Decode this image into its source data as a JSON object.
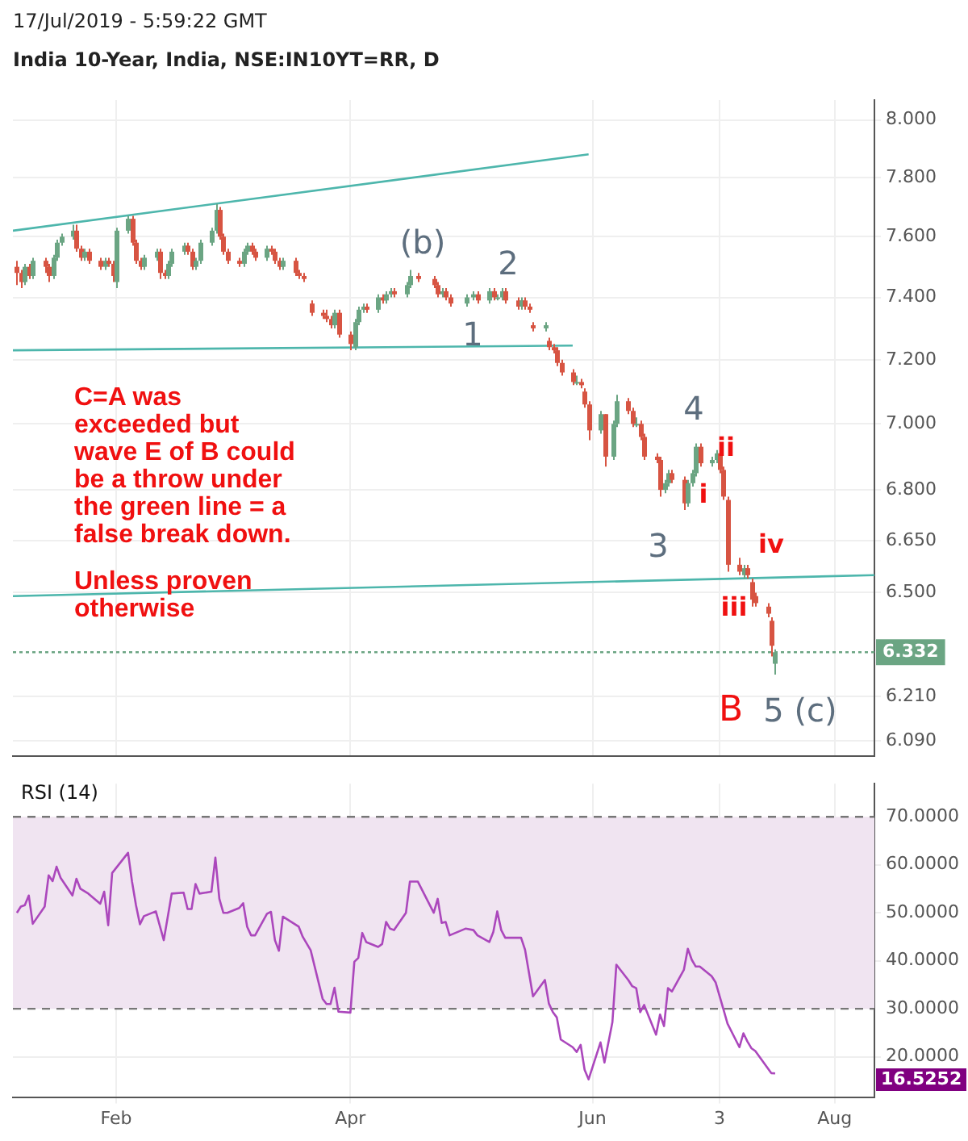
{
  "chart_data": [
    {
      "type": "candlestick",
      "title": "India 10-Year, India, NSE:IN10YT=RR, D",
      "subtitle": "17/Jul/2019 - 5:59:22 GMT",
      "x": [
        "2019-01-07",
        "2019-01-08",
        "2019-01-09",
        "2019-01-10",
        "2019-01-11",
        "2019-01-14",
        "2019-01-15",
        "2019-01-16",
        "2019-01-17",
        "2019-01-18",
        "2019-01-21",
        "2019-01-22",
        "2019-01-23",
        "2019-01-24",
        "2019-01-25",
        "2019-01-28",
        "2019-01-29",
        "2019-01-30",
        "2019-01-31",
        "2019-02-01",
        "2019-02-04",
        "2019-02-05",
        "2019-02-06",
        "2019-02-07",
        "2019-02-08",
        "2019-02-11",
        "2019-02-12",
        "2019-02-13",
        "2019-02-14",
        "2019-02-15",
        "2019-02-18",
        "2019-02-19",
        "2019-02-20",
        "2019-02-21",
        "2019-02-22",
        "2019-02-25",
        "2019-02-26",
        "2019-02-27",
        "2019-02-28",
        "2019-03-01",
        "2019-03-04",
        "2019-03-05",
        "2019-03-06",
        "2019-03-07",
        "2019-03-08",
        "2019-03-11",
        "2019-03-12",
        "2019-03-13",
        "2019-03-14",
        "2019-03-15",
        "2019-03-18",
        "2019-03-19",
        "2019-03-20",
        "2019-03-22",
        "2019-03-25",
        "2019-03-26",
        "2019-03-27",
        "2019-03-28",
        "2019-03-29",
        "2019-04-01",
        "2019-04-02",
        "2019-04-03",
        "2019-04-04",
        "2019-04-05",
        "2019-04-08",
        "2019-04-09",
        "2019-04-10",
        "2019-04-11",
        "2019-04-12",
        "2019-04-15",
        "2019-04-16",
        "2019-04-18",
        "2019-04-22",
        "2019-04-23",
        "2019-04-24",
        "2019-04-25",
        "2019-04-26",
        "2019-04-30",
        "2019-05-02",
        "2019-05-03",
        "2019-05-06",
        "2019-05-07",
        "2019-05-08",
        "2019-05-09",
        "2019-05-10",
        "2019-05-13",
        "2019-05-14",
        "2019-05-15",
        "2019-05-16",
        "2019-05-17",
        "2019-05-20",
        "2019-05-21",
        "2019-05-22",
        "2019-05-23",
        "2019-05-24",
        "2019-05-27",
        "2019-05-28",
        "2019-05-29",
        "2019-05-30",
        "2019-05-31",
        "2019-06-03",
        "2019-06-04",
        "2019-06-06",
        "2019-06-07",
        "2019-06-10",
        "2019-06-11",
        "2019-06-12",
        "2019-06-13",
        "2019-06-14",
        "2019-06-17",
        "2019-06-18",
        "2019-06-19",
        "2019-06-20",
        "2019-06-21",
        "2019-06-24",
        "2019-06-25",
        "2019-06-26",
        "2019-06-27",
        "2019-06-28",
        "2019-07-01",
        "2019-07-02",
        "2019-07-03",
        "2019-07-04",
        "2019-07-05",
        "2019-07-08",
        "2019-07-09",
        "2019-07-10",
        "2019-07-11",
        "2019-07-12",
        "2019-07-15",
        "2019-07-16",
        "2019-07-17"
      ],
      "ohlc": [
        [
          7.5,
          7.52,
          7.44,
          7.48
        ],
        [
          7.48,
          7.49,
          7.43,
          7.45
        ],
        [
          7.45,
          7.51,
          7.44,
          7.5
        ],
        [
          7.5,
          7.51,
          7.46,
          7.47
        ],
        [
          7.47,
          7.53,
          7.46,
          7.52
        ],
        [
          7.52,
          7.53,
          7.48,
          7.5
        ],
        [
          7.5,
          7.51,
          7.45,
          7.47
        ],
        [
          7.47,
          7.54,
          7.46,
          7.53
        ],
        [
          7.53,
          7.59,
          7.52,
          7.58
        ],
        [
          7.58,
          7.61,
          7.57,
          7.6
        ],
        [
          7.6,
          7.64,
          7.59,
          7.62
        ],
        [
          7.62,
          7.64,
          7.55,
          7.56
        ],
        [
          7.56,
          7.57,
          7.52,
          7.53
        ],
        [
          7.53,
          7.56,
          7.52,
          7.55
        ],
        [
          7.55,
          7.56,
          7.51,
          7.52
        ],
        [
          7.52,
          7.53,
          7.49,
          7.5
        ],
        [
          7.5,
          7.53,
          7.49,
          7.52
        ],
        [
          7.52,
          7.53,
          7.5,
          7.51
        ],
        [
          7.51,
          7.52,
          7.45,
          7.47
        ],
        [
          7.45,
          7.63,
          7.43,
          7.62
        ],
        [
          7.62,
          7.67,
          7.61,
          7.66
        ],
        [
          7.66,
          7.67,
          7.57,
          7.58
        ],
        [
          7.58,
          7.59,
          7.51,
          7.52
        ],
        [
          7.52,
          7.53,
          7.49,
          7.5
        ],
        [
          7.5,
          7.54,
          7.49,
          7.53
        ],
        [
          7.53,
          7.56,
          7.52,
          7.55
        ],
        [
          7.55,
          7.56,
          7.46,
          7.48
        ],
        [
          7.48,
          7.49,
          7.46,
          7.47
        ],
        [
          7.47,
          7.52,
          7.46,
          7.51
        ],
        [
          7.51,
          7.56,
          7.5,
          7.55
        ],
        [
          7.55,
          7.58,
          7.54,
          7.57
        ],
        [
          7.57,
          7.58,
          7.54,
          7.55
        ],
        [
          7.55,
          7.56,
          7.49,
          7.5
        ],
        [
          7.5,
          7.53,
          7.49,
          7.52
        ],
        [
          7.52,
          7.59,
          7.51,
          7.58
        ],
        [
          7.58,
          7.63,
          7.57,
          7.62
        ],
        [
          7.62,
          7.71,
          7.61,
          7.69
        ],
        [
          7.69,
          7.7,
          7.59,
          7.6
        ],
        [
          7.6,
          7.61,
          7.54,
          7.55
        ],
        [
          7.55,
          7.56,
          7.51,
          7.52
        ],
        [
          7.52,
          7.53,
          7.5,
          7.51
        ],
        [
          7.51,
          7.56,
          7.5,
          7.55
        ],
        [
          7.55,
          7.58,
          7.54,
          7.57
        ],
        [
          7.57,
          7.58,
          7.54,
          7.55
        ],
        [
          7.55,
          7.56,
          7.52,
          7.53
        ],
        [
          7.53,
          7.57,
          7.52,
          7.56
        ],
        [
          7.56,
          7.57,
          7.54,
          7.55
        ],
        [
          7.55,
          7.56,
          7.51,
          7.52
        ],
        [
          7.52,
          7.53,
          7.49,
          7.5
        ],
        [
          7.5,
          7.53,
          7.49,
          7.52
        ],
        [
          7.52,
          7.53,
          7.47,
          7.48
        ],
        [
          7.48,
          7.49,
          7.46,
          7.47
        ],
        [
          7.47,
          7.48,
          7.45,
          7.46
        ],
        [
          7.38,
          7.39,
          7.34,
          7.35
        ],
        [
          7.35,
          7.36,
          7.33,
          7.34
        ],
        [
          7.34,
          7.36,
          7.32,
          7.33
        ],
        [
          7.33,
          7.34,
          7.3,
          7.31
        ],
        [
          7.31,
          7.36,
          7.3,
          7.35
        ],
        [
          7.35,
          7.36,
          7.27,
          7.28
        ],
        [
          7.28,
          7.29,
          7.23,
          7.25
        ],
        [
          7.24,
          7.33,
          7.23,
          7.32
        ],
        [
          7.32,
          7.37,
          7.31,
          7.36
        ],
        [
          7.36,
          7.38,
          7.35,
          7.37
        ],
        [
          7.37,
          7.38,
          7.35,
          7.36
        ],
        [
          7.36,
          7.41,
          7.35,
          7.4
        ],
        [
          7.4,
          7.41,
          7.38,
          7.39
        ],
        [
          7.39,
          7.42,
          7.38,
          7.41
        ],
        [
          7.41,
          7.43,
          7.4,
          7.42
        ],
        [
          7.42,
          7.43,
          7.4,
          7.41
        ],
        [
          7.41,
          7.45,
          7.4,
          7.44
        ],
        [
          7.44,
          7.49,
          7.43,
          7.47
        ],
        [
          7.47,
          7.48,
          7.45,
          7.46
        ],
        [
          7.46,
          7.47,
          7.43,
          7.44
        ],
        [
          7.44,
          7.45,
          7.4,
          7.41
        ],
        [
          7.41,
          7.43,
          7.4,
          7.42
        ],
        [
          7.42,
          7.43,
          7.39,
          7.4
        ],
        [
          7.4,
          7.41,
          7.37,
          7.38
        ],
        [
          7.38,
          7.41,
          7.37,
          7.4
        ],
        [
          7.4,
          7.42,
          7.39,
          7.41
        ],
        [
          7.41,
          7.42,
          7.38,
          7.39
        ],
        [
          7.39,
          7.43,
          7.38,
          7.42
        ],
        [
          7.42,
          7.43,
          7.39,
          7.4
        ],
        [
          7.4,
          7.41,
          7.39,
          7.4
        ],
        [
          7.4,
          7.43,
          7.39,
          7.42
        ],
        [
          7.42,
          7.43,
          7.38,
          7.39
        ],
        [
          7.39,
          7.4,
          7.36,
          7.37
        ],
        [
          7.37,
          7.4,
          7.36,
          7.39
        ],
        [
          7.39,
          7.4,
          7.36,
          7.37
        ],
        [
          7.37,
          7.38,
          7.35,
          7.36
        ],
        [
          7.31,
          7.32,
          7.29,
          7.3
        ],
        [
          7.3,
          7.32,
          7.29,
          7.31
        ],
        [
          7.26,
          7.27,
          7.23,
          7.24
        ],
        [
          7.24,
          7.25,
          7.22,
          7.23
        ],
        [
          7.23,
          7.24,
          7.18,
          7.19
        ],
        [
          7.19,
          7.2,
          7.15,
          7.16
        ],
        [
          7.16,
          7.17,
          7.12,
          7.13
        ],
        [
          7.13,
          7.15,
          7.12,
          7.13
        ],
        [
          7.13,
          7.14,
          7.11,
          7.12
        ],
        [
          7.1,
          7.11,
          7.05,
          7.06
        ],
        [
          7.06,
          7.07,
          6.95,
          6.98
        ],
        [
          6.98,
          7.04,
          6.97,
          7.03
        ],
        [
          7.03,
          7.03,
          6.87,
          6.9
        ],
        [
          6.9,
          7.01,
          6.89,
          7.0
        ],
        [
          7.0,
          7.09,
          6.99,
          7.07
        ],
        [
          7.07,
          7.08,
          7.03,
          7.04
        ],
        [
          7.04,
          7.05,
          6.99,
          7.0
        ],
        [
          7.0,
          7.02,
          6.99,
          7.0
        ],
        [
          7.0,
          7.01,
          6.95,
          6.96
        ],
        [
          6.96,
          6.97,
          6.89,
          6.9
        ],
        [
          6.9,
          6.91,
          6.88,
          6.89
        ],
        [
          6.89,
          6.9,
          6.78,
          6.8
        ],
        [
          6.8,
          6.83,
          6.79,
          6.82
        ],
        [
          6.82,
          6.86,
          6.81,
          6.85
        ],
        [
          6.85,
          6.86,
          6.82,
          6.83
        ],
        [
          6.83,
          6.84,
          6.74,
          6.76
        ],
        [
          6.76,
          6.83,
          6.75,
          6.82
        ],
        [
          6.82,
          6.86,
          6.81,
          6.85
        ],
        [
          6.85,
          6.94,
          6.84,
          6.93
        ],
        [
          6.93,
          6.94,
          6.87,
          6.88
        ],
        [
          6.88,
          6.9,
          6.87,
          6.89
        ],
        [
          6.89,
          6.92,
          6.88,
          6.91
        ],
        [
          6.91,
          6.92,
          6.85,
          6.86
        ],
        [
          6.86,
          6.87,
          6.77,
          6.78
        ],
        [
          6.77,
          6.78,
          6.56,
          6.58
        ],
        [
          6.58,
          6.6,
          6.55,
          6.56
        ],
        [
          6.55,
          6.58,
          6.54,
          6.57
        ],
        [
          6.57,
          6.58,
          6.54,
          6.55
        ],
        [
          6.53,
          6.54,
          6.46,
          6.48
        ],
        [
          6.49,
          6.5,
          6.46,
          6.47
        ],
        [
          6.46,
          6.47,
          6.43,
          6.44
        ],
        [
          6.42,
          6.43,
          6.32,
          6.35
        ],
        [
          6.3,
          6.34,
          6.27,
          6.332
        ]
      ],
      "colors": [
        "#d75442",
        "#d75442",
        "#6ba583",
        "#d75442",
        "#6ba583",
        "#d75442",
        "#d75442",
        "#6ba583",
        "#6ba583",
        "#6ba583",
        "#6ba583",
        "#d75442",
        "#d75442",
        "#6ba583",
        "#d75442",
        "#d75442",
        "#6ba583",
        "#d75442",
        "#d75442",
        "#6ba583",
        "#6ba583",
        "#d75442",
        "#d75442",
        "#d75442",
        "#6ba583",
        "#6ba583",
        "#d75442",
        "#d75442",
        "#6ba583",
        "#6ba583",
        "#6ba583",
        "#d75442",
        "#d75442",
        "#6ba583",
        "#6ba583",
        "#6ba583",
        "#6ba583",
        "#d75442",
        "#d75442",
        "#d75442",
        "#d75442",
        "#6ba583",
        "#6ba583",
        "#d75442",
        "#d75442",
        "#6ba583",
        "#d75442",
        "#d75442",
        "#d75442",
        "#6ba583",
        "#d75442",
        "#d75442",
        "#d75442",
        "#d75442",
        "#d75442",
        "#d75442",
        "#d75442",
        "#6ba583",
        "#d75442",
        "#d75442",
        "#6ba583",
        "#6ba583",
        "#6ba583",
        "#d75442",
        "#6ba583",
        "#d75442",
        "#6ba583",
        "#6ba583",
        "#d75442",
        "#6ba583",
        "#6ba583",
        "#d75442",
        "#d75442",
        "#d75442",
        "#6ba583",
        "#d75442",
        "#d75442",
        "#6ba583",
        "#6ba583",
        "#d75442",
        "#6ba583",
        "#d75442",
        "#6ba583",
        "#6ba583",
        "#d75442",
        "#d75442",
        "#6ba583",
        "#d75442",
        "#d75442",
        "#d75442",
        "#6ba583",
        "#d75442",
        "#d75442",
        "#d75442",
        "#d75442",
        "#d75442",
        "#6ba583",
        "#d75442",
        "#d75442",
        "#d75442",
        "#6ba583",
        "#d75442",
        "#6ba583",
        "#6ba583",
        "#d75442",
        "#d75442",
        "#6ba583",
        "#d75442",
        "#d75442",
        "#d75442",
        "#d75442",
        "#6ba583",
        "#6ba583",
        "#d75442",
        "#d75442",
        "#6ba583",
        "#6ba583",
        "#6ba583",
        "#d75442",
        "#6ba583",
        "#6ba583",
        "#d75442",
        "#d75442",
        "#d75442",
        "#d75442",
        "#6ba583",
        "#d75442",
        "#d75442",
        "#d75442",
        "#d75442",
        "#d75442",
        "#6ba583"
      ],
      "series": [
        {
          "type": "line",
          "color": "#4db6ac",
          "x": [
            "2019-01-06",
            "2019-05-31"
          ],
          "values": [
            7.62,
            7.88
          ]
        },
        {
          "type": "line",
          "color": "#4db6ac",
          "x": [
            "2019-01-06",
            "2019-05-27"
          ],
          "values": [
            7.23,
            7.245
          ]
        },
        {
          "type": "line",
          "color": "#4db6ac",
          "x": [
            "2019-01-06",
            "2019-08-11"
          ],
          "values": [
            6.49,
            6.55
          ]
        }
      ],
      "log": "y",
      "marker": "none",
      "grid": true,
      "tick_labels": "y",
      "xlim": [
        "2019-01-06",
        "2019-08-11"
      ],
      "xticks": [
        {
          "value": "2019-02-01",
          "label": null
        },
        {
          "value": "2019-04-01",
          "label": null
        },
        {
          "value": "2019-06-01",
          "label": null
        },
        {
          "value": "2019-07-03",
          "label": null
        },
        {
          "value": "2019-08-01",
          "label": null
        }
      ],
      "ylim": [
        6.05,
        8.07
      ],
      "yticks": [
        {
          "value": 8,
          "label": "8.000"
        },
        {
          "value": 7.8,
          "label": "7.800"
        },
        {
          "value": 7.6,
          "label": "7.600"
        },
        {
          "value": 7.4,
          "label": "7.400"
        },
        {
          "value": 7.2,
          "label": "7.200"
        },
        {
          "value": 7,
          "label": "7.000"
        },
        {
          "value": 6.8,
          "label": "6.800"
        },
        {
          "value": 6.65,
          "label": "6.650"
        },
        {
          "value": 6.5,
          "label": "6.500"
        },
        {
          "value": 6.21,
          "label": "6.210"
        },
        {
          "value": 6.09,
          "label": "6.090"
        }
      ],
      "ref_lines": [
        {
          "axis": "y",
          "value": 6.332,
          "label": "6.332",
          "color": "#6ba583",
          "line_style": "dotted"
        }
      ],
      "annotations": [
        "C=A was exceeded but wave E of B could be a throw under the green line = a false break down.",
        "Unless proven otherwise",
        "(b)",
        "2",
        "1",
        "4",
        "3",
        "ii",
        "i",
        "iv",
        "iii",
        "B",
        "5 (c)"
      ]
    },
    {
      "type": "line",
      "title": "RSI (14)",
      "color": "#ab47bc",
      "marker": "none",
      "grid": true,
      "x": [
        "2019-01-07",
        "2019-01-08",
        "2019-01-09",
        "2019-01-10",
        "2019-01-11",
        "2019-01-14",
        "2019-01-15",
        "2019-01-16",
        "2019-01-17",
        "2019-01-18",
        "2019-01-21",
        "2019-01-22",
        "2019-01-23",
        "2019-01-25",
        "2019-01-28",
        "2019-01-29",
        "2019-01-30",
        "2019-01-31",
        "2019-02-04",
        "2019-02-05",
        "2019-02-06",
        "2019-02-07",
        "2019-02-08",
        "2019-02-11",
        "2019-02-13",
        "2019-02-15",
        "2019-02-18",
        "2019-02-19",
        "2019-02-20",
        "2019-02-21",
        "2019-02-22",
        "2019-02-25",
        "2019-02-26",
        "2019-02-27",
        "2019-02-28",
        "2019-03-01",
        "2019-03-04",
        "2019-03-05",
        "2019-03-06",
        "2019-03-07",
        "2019-03-08",
        "2019-03-11",
        "2019-03-12",
        "2019-03-13",
        "2019-03-14",
        "2019-03-15",
        "2019-03-19",
        "2019-03-20",
        "2019-03-22",
        "2019-03-25",
        "2019-03-26",
        "2019-03-27",
        "2019-03-28",
        "2019-03-29",
        "2019-04-01",
        "2019-04-02",
        "2019-04-03",
        "2019-04-04",
        "2019-04-05",
        "2019-04-08",
        "2019-04-09",
        "2019-04-10",
        "2019-04-11",
        "2019-04-12",
        "2019-04-15",
        "2019-04-16",
        "2019-04-18",
        "2019-04-22",
        "2019-04-23",
        "2019-04-24",
        "2019-04-25",
        "2019-04-26",
        "2019-04-30",
        "2019-05-02",
        "2019-05-03",
        "2019-05-06",
        "2019-05-07",
        "2019-05-08",
        "2019-05-09",
        "2019-05-10",
        "2019-05-14",
        "2019-05-15",
        "2019-05-17",
        "2019-05-20",
        "2019-05-21",
        "2019-05-22",
        "2019-05-23",
        "2019-05-24",
        "2019-05-27",
        "2019-05-28",
        "2019-05-29",
        "2019-05-30",
        "2019-05-31",
        "2019-06-03",
        "2019-06-04",
        "2019-06-06",
        "2019-06-07",
        "2019-06-10",
        "2019-06-11",
        "2019-06-12",
        "2019-06-13",
        "2019-06-14",
        "2019-06-17",
        "2019-06-18",
        "2019-06-19",
        "2019-06-20",
        "2019-06-21",
        "2019-06-24",
        "2019-06-25",
        "2019-06-26",
        "2019-06-27",
        "2019-06-28",
        "2019-07-01",
        "2019-07-02",
        "2019-07-04",
        "2019-07-05",
        "2019-07-08",
        "2019-07-09",
        "2019-07-10",
        "2019-07-11",
        "2019-07-12",
        "2019-07-16",
        "2019-07-17"
      ],
      "values": [
        50,
        51.3,
        51.6,
        53.6,
        47.7,
        51.3,
        57.8,
        56.6,
        59.6,
        57.3,
        53.6,
        57.1,
        55,
        54,
        51.9,
        54.4,
        47.4,
        58.3,
        62.5,
        56.5,
        51.6,
        47.6,
        49.3,
        50.3,
        44.3,
        54,
        54.2,
        50.8,
        50.8,
        56,
        54,
        54.4,
        61.5,
        52.9,
        50,
        50,
        51,
        52,
        47.1,
        45.3,
        45.3,
        49.8,
        50.2,
        44.3,
        42.1,
        49.2,
        47.1,
        45,
        42.2,
        32.1,
        31,
        31,
        34.4,
        29.4,
        29.2,
        39.8,
        40.6,
        45.8,
        43.9,
        42.9,
        43.5,
        48.1,
        46.7,
        46.4,
        50,
        56.5,
        56.5,
        50,
        52.9,
        47.9,
        48.1,
        45.3,
        46.7,
        46.4,
        45.3,
        43.9,
        46,
        50.3,
        46.4,
        44.8,
        44.8,
        42.3,
        32.6,
        36,
        31.1,
        29.3,
        28.2,
        23.6,
        22,
        21,
        22.5,
        17.3,
        15.3,
        23,
        18.8,
        27.2,
        39.2,
        36,
        34.7,
        34.3,
        29.3,
        30.8,
        24.6,
        28.8,
        26.4,
        34.3,
        33.6,
        38.1,
        42.5,
        40.2,
        38.8,
        38.8,
        36.8,
        35.5,
        29.8,
        26.9,
        22,
        24.9,
        23.2,
        21.8,
        21.2,
        16.6,
        16.5252
      ],
      "xlim": [
        "2019-01-06",
        "2019-08-11"
      ],
      "xticks": [
        {
          "value": "2019-02-01",
          "label": "Feb"
        },
        {
          "value": "2019-04-01",
          "label": "Apr"
        },
        {
          "value": "2019-06-01",
          "label": "Jun"
        },
        {
          "value": "2019-07-03",
          "label": "3"
        },
        {
          "value": "2019-08-01",
          "label": "Aug"
        }
      ],
      "ylim": [
        11.6,
        76.9
      ],
      "yticks": [
        {
          "value": 20,
          "label": "20.0000"
        },
        {
          "value": 30,
          "label": "30.0000"
        },
        {
          "value": 40,
          "label": "40.0000"
        },
        {
          "value": 50,
          "label": "50.0000"
        },
        {
          "value": 60,
          "label": "60.0000"
        },
        {
          "value": 70,
          "label": "70.0000"
        }
      ],
      "bands": [
        {
          "axis": "y",
          "from": 30,
          "to": 70,
          "color": "#f0e4f1"
        }
      ],
      "annotations": [
        "16.5252"
      ]
    }
  ]
}
